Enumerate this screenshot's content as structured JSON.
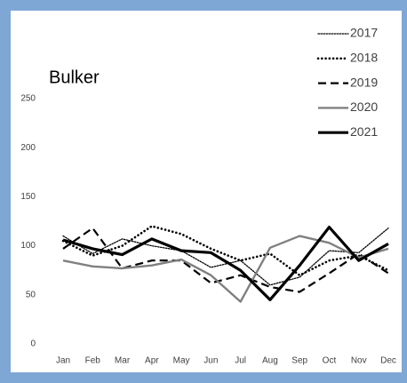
{
  "chart_data": {
    "type": "line",
    "title": "Bulker",
    "categories": [
      "Jan",
      "Feb",
      "Mar",
      "Apr",
      "May",
      "Jun",
      "Jul",
      "Aug",
      "Sep",
      "Oct",
      "Nov",
      "Dec"
    ],
    "series": [
      {
        "name": "2017",
        "color": "#000000",
        "style": "dotted",
        "width": 1.3,
        "values": [
          110,
          92,
          107,
          100,
          95,
          78,
          85,
          60,
          68,
          95,
          93,
          118
        ]
      },
      {
        "name": "2018",
        "color": "#000000",
        "style": "dotted",
        "width": 2.6,
        "values": [
          105,
          90,
          100,
          120,
          112,
          97,
          85,
          92,
          70,
          85,
          90,
          75
        ]
      },
      {
        "name": "2019",
        "color": "#000000",
        "style": "dashed",
        "width": 2.2,
        "values": [
          97,
          118,
          77,
          85,
          85,
          62,
          70,
          58,
          53,
          72,
          92,
          72
        ]
      },
      {
        "name": "2020",
        "color": "#808080",
        "style": "solid",
        "width": 2.4,
        "values": [
          85,
          79,
          77,
          80,
          86,
          70,
          43,
          98,
          110,
          103,
          88,
          97
        ]
      },
      {
        "name": "2021",
        "color": "#000000",
        "style": "solid",
        "width": 3.2,
        "values": [
          106,
          97,
          91,
          107,
          95,
          93,
          75,
          45,
          80,
          119,
          85,
          102
        ]
      }
    ],
    "ylim": [
      0,
      250
    ],
    "yticks": [
      0,
      50,
      100,
      150,
      200,
      250
    ],
    "grid": false,
    "legend": "top-right"
  }
}
